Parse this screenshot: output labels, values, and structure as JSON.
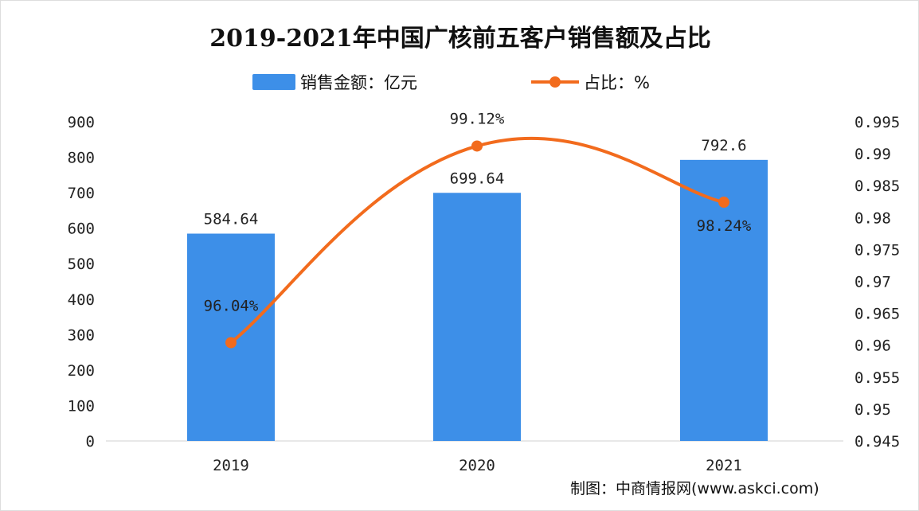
{
  "chart_data": {
    "type": "bar+line",
    "title": "2019-2021年中国广核前五客户销售额及占比",
    "categories": [
      "2019",
      "2020",
      "2021"
    ],
    "series": [
      {
        "name": "销售金额：亿元",
        "type": "bar",
        "axis": "left",
        "values": [
          584.64,
          699.64,
          792.6
        ],
        "labels": [
          "584.64",
          "699.64",
          "792.6"
        ],
        "color": "#3d8fe8"
      },
      {
        "name": "占比：%",
        "type": "line",
        "axis": "right",
        "values": [
          0.9604,
          0.9912,
          0.9824
        ],
        "labels": [
          "96.04%",
          "99.12%",
          "98.24%"
        ],
        "color": "#f26b1d"
      }
    ],
    "y_left": {
      "range": [
        0,
        900
      ],
      "ticks": [
        "0",
        "100",
        "200",
        "300",
        "400",
        "500",
        "600",
        "700",
        "800",
        "900"
      ]
    },
    "y_right": {
      "range": [
        0.945,
        0.995
      ],
      "ticks": [
        "0.945",
        "0.95",
        "0.955",
        "0.96",
        "0.965",
        "0.97",
        "0.975",
        "0.98",
        "0.985",
        "0.99",
        "0.995"
      ]
    },
    "grid": false,
    "legend": "top"
  },
  "source": "制图：中商情报网(www.askci.com)"
}
